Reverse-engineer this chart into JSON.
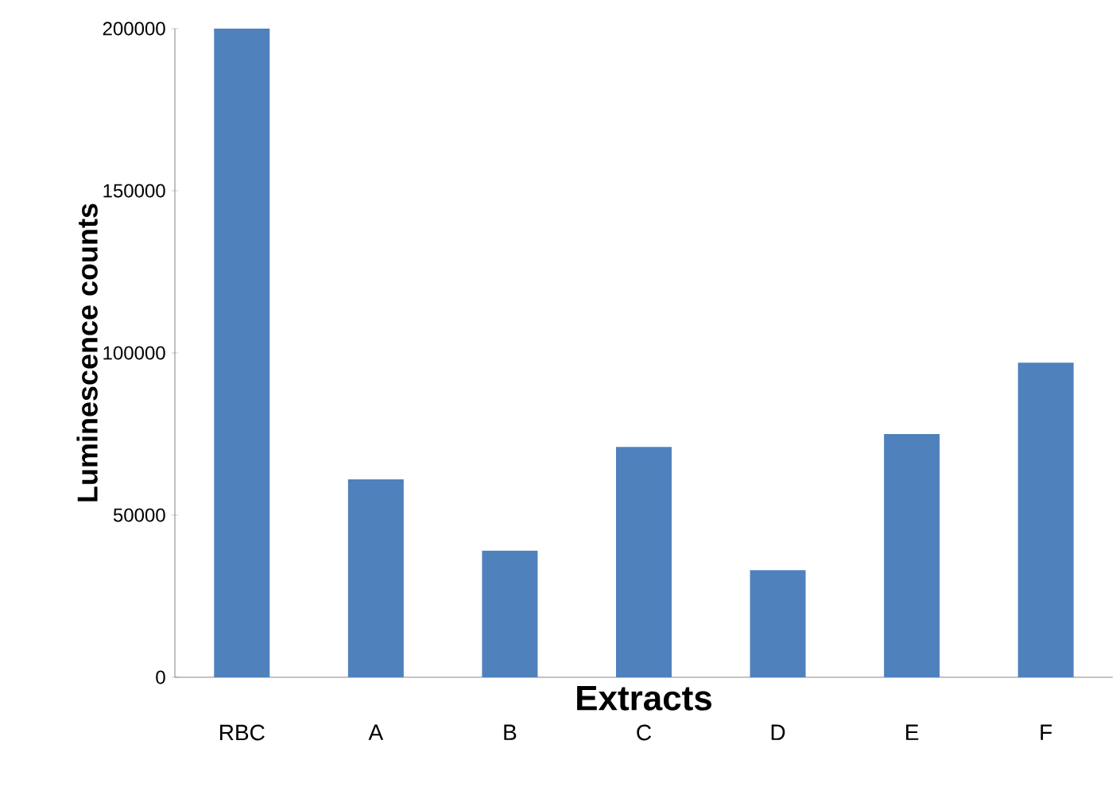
{
  "chart_data": {
    "type": "bar",
    "xlabel": "Extracts",
    "ylabel": "Luminescence counts",
    "categories": [
      "RBC",
      "A",
      "B",
      "C",
      "D",
      "E",
      "F"
    ],
    "values": [
      200000,
      61000,
      39000,
      71000,
      33000,
      75000,
      97000
    ],
    "color": "#4f81bd",
    "ylim": [
      0,
      200000
    ],
    "yticks": [
      0,
      50000,
      100000,
      150000,
      200000
    ],
    "grid": false
  }
}
